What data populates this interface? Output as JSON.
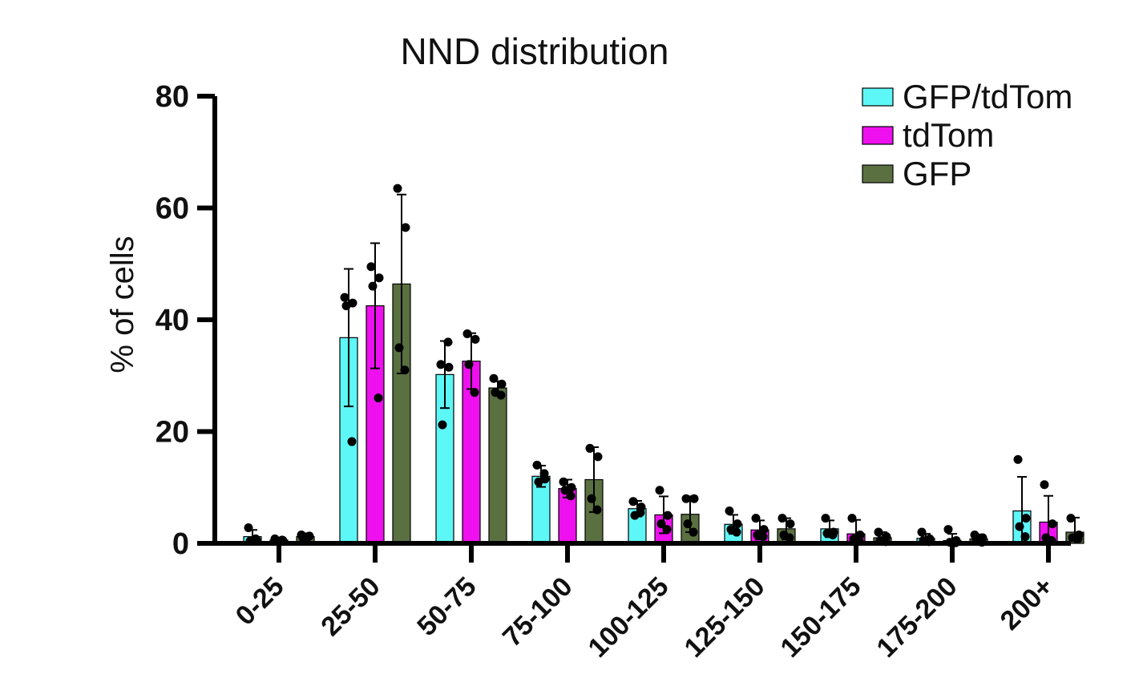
{
  "chart_data": {
    "type": "bar",
    "title": "NND distribution",
    "xlabel": "",
    "ylabel": "% of cells",
    "ylim": [
      0,
      80
    ],
    "yticks": [
      0,
      20,
      40,
      60,
      80
    ],
    "categories": [
      "0-25",
      "25-50",
      "50-75",
      "75-100",
      "100-125",
      "125-150",
      "150-175",
      "175-200",
      "200+"
    ],
    "legend_position": "top-right",
    "series": [
      {
        "name": "GFP/tdTom",
        "color": "#5ef7f7",
        "values": [
          1.2,
          36.8,
          30.2,
          12.0,
          6.2,
          3.4,
          2.6,
          0.9,
          5.8
        ],
        "error": [
          1.2,
          12.3,
          6.0,
          1.9,
          1.4,
          1.7,
          1.5,
          0.8,
          6.1
        ],
        "points": [
          [
            2.8,
            0.6,
            0.4,
            0.8
          ],
          [
            44.0,
            43.0,
            42.5,
            18.2
          ],
          [
            32.0,
            31.5,
            21.2,
            36.0
          ],
          [
            14.0,
            11.5,
            11.0,
            12.5
          ],
          [
            7.5,
            6.5,
            5.0,
            5.5
          ],
          [
            5.8,
            3.5,
            2.5,
            2.0
          ],
          [
            4.5,
            2.0,
            1.8,
            1.5
          ],
          [
            2.0,
            0.8,
            0.5,
            0.3
          ],
          [
            15.0,
            4.5,
            3.0,
            1.2
          ]
        ]
      },
      {
        "name": "tdTom",
        "color": "#ee10ee",
        "values": [
          0.6,
          42.5,
          32.6,
          9.8,
          5.1,
          2.4,
          1.7,
          0.5,
          3.8
        ],
        "error": [
          0.3,
          11.2,
          5.0,
          1.6,
          3.3,
          1.7,
          2.5,
          1.2,
          4.7
        ],
        "points": [
          [
            0.8,
            0.5,
            0.4,
            0.6
          ],
          [
            49.5,
            47.5,
            46.0,
            26.0
          ],
          [
            37.5,
            36.5,
            32.0,
            27.0
          ],
          [
            11.0,
            10.0,
            9.5,
            8.5
          ],
          [
            9.5,
            5.0,
            3.5,
            2.5
          ],
          [
            4.5,
            2.5,
            1.5,
            1.2
          ],
          [
            4.5,
            1.5,
            0.8,
            0.5
          ],
          [
            2.5,
            0.5,
            0.2,
            0.1
          ],
          [
            10.5,
            3.5,
            1.0,
            0.5
          ]
        ]
      },
      {
        "name": "GFP",
        "color": "#5a7040",
        "values": [
          1.2,
          46.4,
          27.8,
          11.4,
          5.2,
          2.6,
          1.0,
          0.8,
          2.0
        ],
        "error": [
          0.6,
          16.0,
          1.2,
          5.8,
          3.2,
          1.9,
          1.0,
          0.8,
          2.6
        ],
        "points": [
          [
            1.5,
            1.3,
            1.0,
            1.2
          ],
          [
            63.5,
            56.5,
            35.0,
            31.0
          ],
          [
            29.5,
            28.5,
            27.0,
            26.5
          ],
          [
            17.0,
            15.5,
            8.0,
            6.0
          ],
          [
            8.0,
            8.0,
            3.5,
            2.0
          ],
          [
            4.5,
            3.5,
            1.5,
            1.0
          ],
          [
            2.0,
            1.2,
            0.5,
            0.3
          ],
          [
            1.5,
            1.0,
            0.5,
            0.2
          ],
          [
            4.5,
            1.5,
            1.0,
            0.8
          ]
        ]
      }
    ]
  }
}
